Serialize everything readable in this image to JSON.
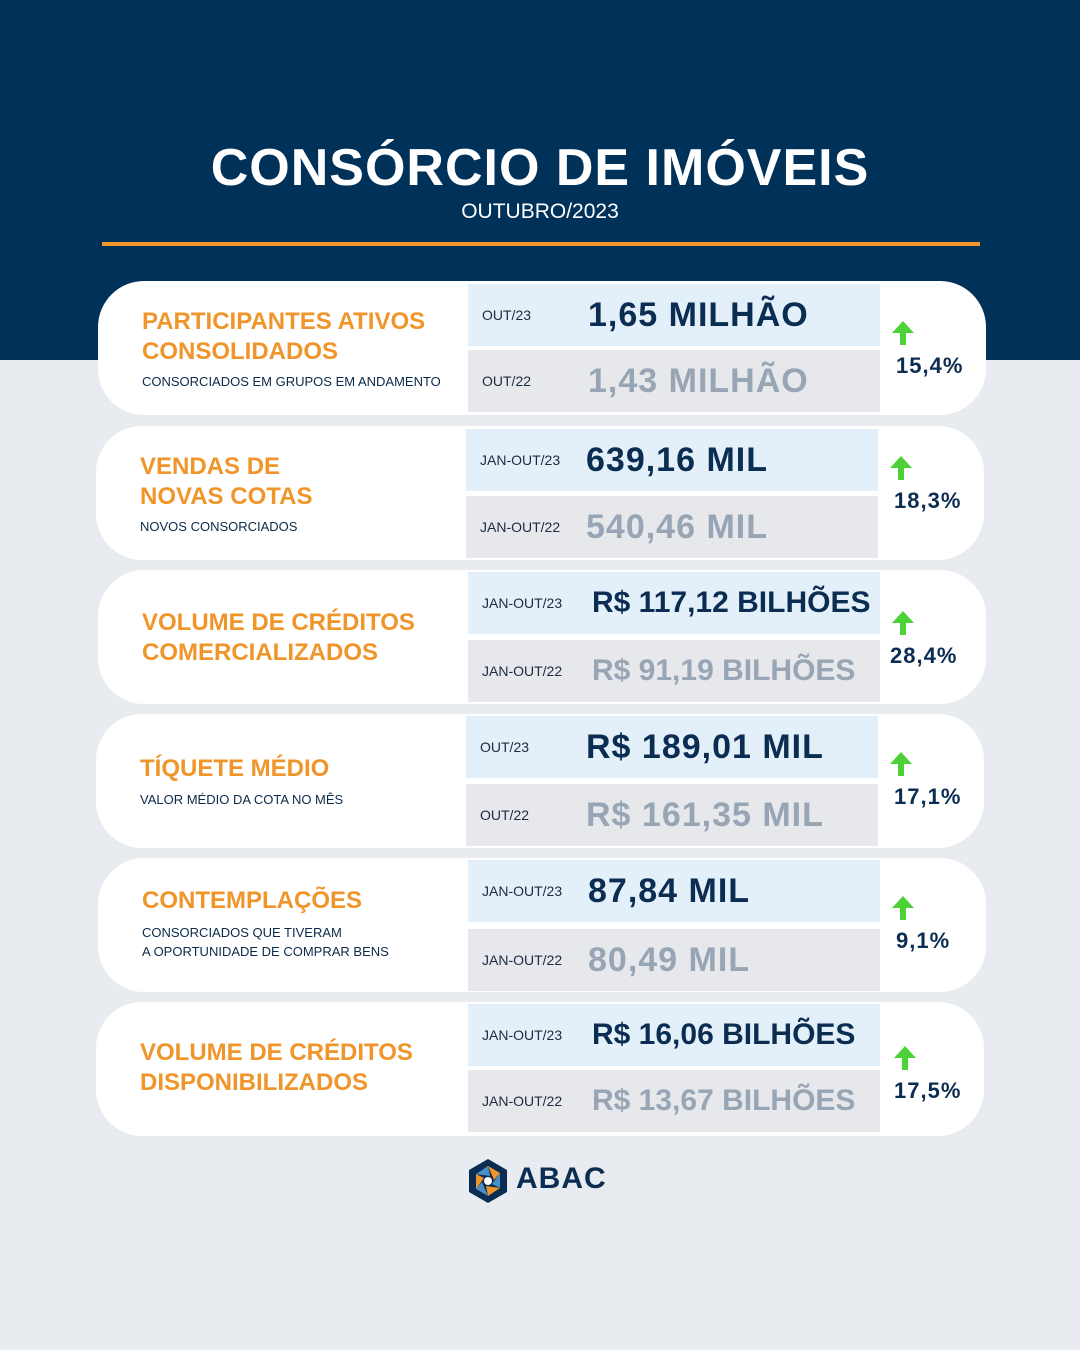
{
  "header": {
    "title": "CONSÓRCIO DE IMÓVEIS",
    "subtitle": "OUTUBRO/2023"
  },
  "cards": [
    {
      "title": "PARTICIPANTES ATIVOS\nCONSOLIDADOS",
      "description": "CONSORCIADOS EM GRUPOS EM ANDAMENTO",
      "current": {
        "label": "OUT/23",
        "value": "1,65 MILHÃO"
      },
      "previous": {
        "label": "OUT/22",
        "value": "1,43 MILHÃO"
      },
      "change": "15,4%",
      "trend_icon": "up-arrow-icon"
    },
    {
      "title": "VENDAS DE\nNOVAS COTAS",
      "description": "NOVOS CONSORCIADOS",
      "current": {
        "label": "JAN-OUT/23",
        "value": "639,16 MIL"
      },
      "previous": {
        "label": "JAN-OUT/22",
        "value": "540,46 MIL"
      },
      "change": "18,3%",
      "trend_icon": "up-arrow-icon"
    },
    {
      "title": "VOLUME DE CRÉDITOS\nCOMERCIALIZADOS",
      "description": "",
      "current": {
        "label": "JAN-OUT/23",
        "value": "R$ 117,12 BILHÕES"
      },
      "previous": {
        "label": "JAN-OUT/22",
        "value": "R$ 91,19 BILHÕES"
      },
      "change": "28,4%",
      "trend_icon": "up-arrow-icon"
    },
    {
      "title": "TÍQUETE MÉDIO",
      "description": "VALOR MÉDIO DA COTA NO MÊS",
      "current": {
        "label": "OUT/23",
        "value": "R$ 189,01 MIL"
      },
      "previous": {
        "label": "OUT/22",
        "value": "R$ 161,35 MIL"
      },
      "change": "17,1%",
      "trend_icon": "up-arrow-icon"
    },
    {
      "title": "CONTEMPLAÇÕES",
      "description": "CONSORCIADOS QUE TIVERAM\nA OPORTUNIDADE DE COMPRAR BENS",
      "current": {
        "label": "JAN-OUT/23",
        "value": "87,84 MIL"
      },
      "previous": {
        "label": "JAN-OUT/22",
        "value": "80,49 MIL"
      },
      "change": "9,1%",
      "trend_icon": "up-arrow-icon"
    },
    {
      "title": "VOLUME DE CRÉDITOS\nDISPONIBILIZADOS",
      "description": "",
      "current": {
        "label": "JAN-OUT/23",
        "value": "R$ 16,06 BILHÕES"
      },
      "previous": {
        "label": "JAN-OUT/22",
        "value": "R$ 13,67 BILHÕES"
      },
      "change": "17,5%",
      "trend_icon": "up-arrow-icon"
    }
  ],
  "footer": {
    "logo_text": "ABAC"
  },
  "colors": {
    "navy": "#003159",
    "orange": "#f0952a",
    "arrow_green": "#4cd137",
    "current_row_bg": "#e3f0f9",
    "previous_row_bg": "#e6e8ec"
  }
}
